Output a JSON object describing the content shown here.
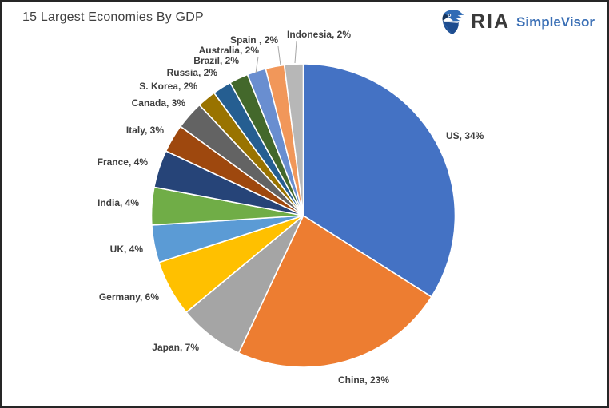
{
  "window": {
    "background": "#FFFFFF",
    "border_color": "#262626"
  },
  "header": {
    "title": "15 Largest Economies By GDP",
    "logo": {
      "icon": "eagle-shield-icon",
      "brand": "RIA",
      "product": "SimpleVisor",
      "brand_color": "#3A3A3A",
      "product_color": "#3A6FB5"
    }
  },
  "chart_data": {
    "type": "pie",
    "title": "15 Largest Economies By GDP",
    "start_angle_deg": 0,
    "direction": "clockwise",
    "legend": "none",
    "label_style": "outside-end",
    "label_color": "#3F3F3F",
    "slice_border_color": "#FFFFFF",
    "leader_line_color": "#A6A6A6",
    "slices": [
      {
        "name": "US",
        "value": 34,
        "label": "US, 34%",
        "color": "#4472C4"
      },
      {
        "name": "China",
        "value": 23,
        "label": "China, 23%",
        "color": "#ED7D31"
      },
      {
        "name": "Japan",
        "value": 7,
        "label": "Japan, 7%",
        "color": "#A5A5A5"
      },
      {
        "name": "Germany",
        "value": 6,
        "label": "Germany, 6%",
        "color": "#FFC000"
      },
      {
        "name": "UK",
        "value": 4,
        "label": "UK, 4%",
        "color": "#5B9BD5"
      },
      {
        "name": "India",
        "value": 4,
        "label": "India, 4%",
        "color": "#70AD47"
      },
      {
        "name": "France",
        "value": 4,
        "label": "France, 4%",
        "color": "#264478"
      },
      {
        "name": "Italy",
        "value": 3,
        "label": "Italy, 3%",
        "color": "#9E480E"
      },
      {
        "name": "Canada",
        "value": 3,
        "label": "Canada, 3%",
        "color": "#636363"
      },
      {
        "name": "S. Korea",
        "value": 2,
        "label": "S. Korea, 2%",
        "color": "#997300"
      },
      {
        "name": "Russia",
        "value": 2,
        "label": "Russia, 2%",
        "color": "#255E91"
      },
      {
        "name": "Brazil",
        "value": 2,
        "label": "Brazil, 2%",
        "color": "#43682B"
      },
      {
        "name": "Australia",
        "value": 2,
        "label": "Australia, 2%",
        "color": "#698ED0"
      },
      {
        "name": "Spain",
        "value": 2,
        "label": "Spain , 2%",
        "color": "#F1975A"
      },
      {
        "name": "Indonesia",
        "value": 2,
        "label": "Indonesia, 2%",
        "color": "#B7B7B7"
      }
    ]
  }
}
